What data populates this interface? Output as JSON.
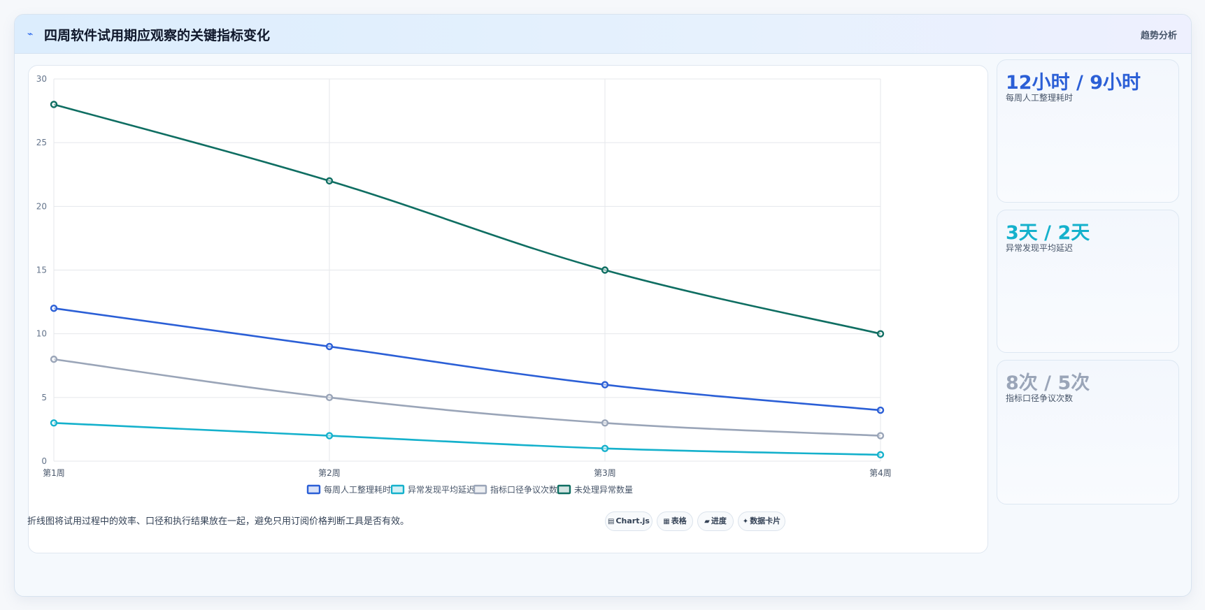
{
  "header": {
    "icon": "trend-icon",
    "title": "四周软件试用期应观察的关键指标变化",
    "tag": "趋势分析"
  },
  "chart_data": {
    "type": "line",
    "categories": [
      "第1周",
      "第2周",
      "第3周",
      "第4周"
    ],
    "ylim": [
      0,
      30
    ],
    "yticks": [
      0,
      5,
      10,
      15,
      20,
      25,
      30
    ],
    "grid": true,
    "legend_position": "bottom",
    "series": [
      {
        "name": "每周人工整理耗时",
        "values": [
          12,
          9,
          6,
          4
        ],
        "color": "#2b5fd6"
      },
      {
        "name": "异常发现平均延迟",
        "values": [
          3,
          2,
          1,
          0.5
        ],
        "color": "#15b1cc"
      },
      {
        "name": "指标口径争议次数",
        "values": [
          8,
          5,
          3,
          2
        ],
        "color": "#9aa5b8"
      },
      {
        "name": "未处理异常数量",
        "values": [
          28,
          22,
          15,
          10
        ],
        "color": "#0f6e62"
      }
    ]
  },
  "side_cards": [
    {
      "value": "12小时 / 9小时",
      "label": "每周人工整理耗时",
      "color": "#2b5fd6"
    },
    {
      "value": "3天 / 2天",
      "label": "异常发现平均延迟",
      "color": "#15b1cc"
    },
    {
      "value": "8次 / 5次",
      "label": "指标口径争议次数",
      "color": "#9aa5b8"
    }
  ],
  "footer": {
    "note": "折线图将试用过程中的效率、口径和执行结果放在一起，避免只用订阅价格判断工具是否有效。",
    "chips": [
      {
        "icon": "▤",
        "icon_name": "chart-icon",
        "label": "Chart.js"
      },
      {
        "icon": "▦",
        "icon_name": "table-icon",
        "label": "表格"
      },
      {
        "icon": "▰",
        "icon_name": "progress-icon",
        "label": "进度"
      },
      {
        "icon": "✦",
        "icon_name": "card-icon",
        "label": "数据卡片"
      }
    ]
  }
}
